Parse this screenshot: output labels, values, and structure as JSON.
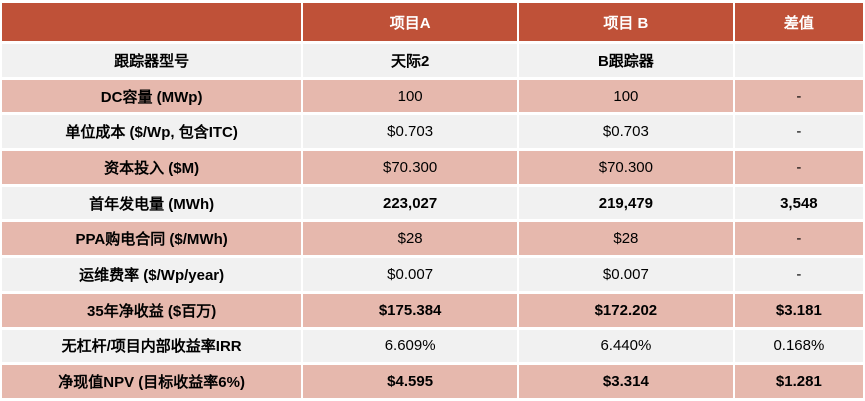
{
  "colors": {
    "header_bg": "#BF5138",
    "header_text": "#FFFFFF",
    "row_light_bg": "#F1F1F1",
    "row_pink_bg": "#E6B8AD",
    "text": "#000000"
  },
  "chart_data": {
    "type": "table",
    "title": "",
    "columns": [
      "",
      "项目A",
      "项目 B",
      "差值"
    ],
    "rows": [
      {
        "label": "跟踪器型号",
        "project_a": "天际2",
        "project_b": "B跟踪器",
        "diff": "",
        "emphasis": true
      },
      {
        "label": "DC容量 (MWp)",
        "project_a": "100",
        "project_b": "100",
        "diff": "-",
        "emphasis": false
      },
      {
        "label": "单位成本 ($/Wp, 包含ITC)",
        "project_a": "$0.703",
        "project_b": "$0.703",
        "diff": "-",
        "emphasis": false
      },
      {
        "label": "资本投入 ($M)",
        "project_a": "$70.300",
        "project_b": "$70.300",
        "diff": "-",
        "emphasis": false
      },
      {
        "label": "首年发电量 (MWh)",
        "project_a": "223,027",
        "project_b": "219,479",
        "diff": "3,548",
        "emphasis": true
      },
      {
        "label": "PPA购电合同 ($/MWh)",
        "project_a": "$28",
        "project_b": "$28",
        "diff": "-",
        "emphasis": false
      },
      {
        "label": "运维费率 ($/Wp/year)",
        "project_a": "$0.007",
        "project_b": "$0.007",
        "diff": "-",
        "emphasis": false
      },
      {
        "label": "35年净收益 ($百万)",
        "project_a": "$175.384",
        "project_b": "$172.202",
        "diff": "$3.181",
        "emphasis": true
      },
      {
        "label": "无杠杆/项目内部收益率IRR",
        "project_a": "6.609%",
        "project_b": "6.440%",
        "diff": "0.168%",
        "emphasis": false
      },
      {
        "label": "净现值NPV (目标收益率6%)",
        "project_a": "$4.595",
        "project_b": "$3.314",
        "diff": "$1.281",
        "emphasis": true
      }
    ]
  }
}
